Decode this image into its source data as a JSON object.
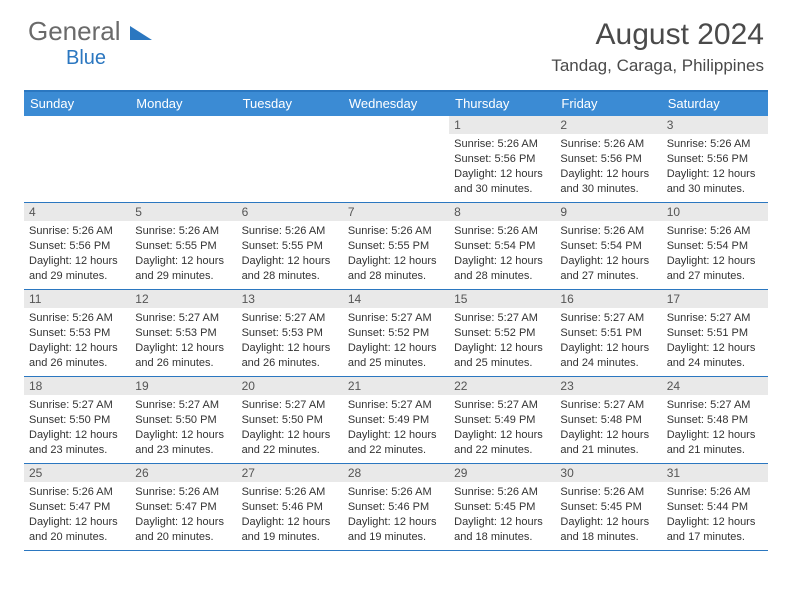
{
  "logo": {
    "text1": "General",
    "text2": "Blue"
  },
  "title": {
    "month": "August 2024",
    "location": "Tandag, Caraga, Philippines"
  },
  "colors": {
    "header_bg": "#3b8bd4",
    "border": "#2b77c0",
    "daynum_bg": "#e9e9e9",
    "text": "#333333",
    "title_text": "#4a4a4a"
  },
  "day_names": [
    "Sunday",
    "Monday",
    "Tuesday",
    "Wednesday",
    "Thursday",
    "Friday",
    "Saturday"
  ],
  "weeks": [
    [
      null,
      null,
      null,
      null,
      {
        "n": "1",
        "sr": "5:26 AM",
        "ss": "5:56 PM",
        "dl": "12 hours and 30 minutes."
      },
      {
        "n": "2",
        "sr": "5:26 AM",
        "ss": "5:56 PM",
        "dl": "12 hours and 30 minutes."
      },
      {
        "n": "3",
        "sr": "5:26 AM",
        "ss": "5:56 PM",
        "dl": "12 hours and 30 minutes."
      }
    ],
    [
      {
        "n": "4",
        "sr": "5:26 AM",
        "ss": "5:56 PM",
        "dl": "12 hours and 29 minutes."
      },
      {
        "n": "5",
        "sr": "5:26 AM",
        "ss": "5:55 PM",
        "dl": "12 hours and 29 minutes."
      },
      {
        "n": "6",
        "sr": "5:26 AM",
        "ss": "5:55 PM",
        "dl": "12 hours and 28 minutes."
      },
      {
        "n": "7",
        "sr": "5:26 AM",
        "ss": "5:55 PM",
        "dl": "12 hours and 28 minutes."
      },
      {
        "n": "8",
        "sr": "5:26 AM",
        "ss": "5:54 PM",
        "dl": "12 hours and 28 minutes."
      },
      {
        "n": "9",
        "sr": "5:26 AM",
        "ss": "5:54 PM",
        "dl": "12 hours and 27 minutes."
      },
      {
        "n": "10",
        "sr": "5:26 AM",
        "ss": "5:54 PM",
        "dl": "12 hours and 27 minutes."
      }
    ],
    [
      {
        "n": "11",
        "sr": "5:26 AM",
        "ss": "5:53 PM",
        "dl": "12 hours and 26 minutes."
      },
      {
        "n": "12",
        "sr": "5:27 AM",
        "ss": "5:53 PM",
        "dl": "12 hours and 26 minutes."
      },
      {
        "n": "13",
        "sr": "5:27 AM",
        "ss": "5:53 PM",
        "dl": "12 hours and 26 minutes."
      },
      {
        "n": "14",
        "sr": "5:27 AM",
        "ss": "5:52 PM",
        "dl": "12 hours and 25 minutes."
      },
      {
        "n": "15",
        "sr": "5:27 AM",
        "ss": "5:52 PM",
        "dl": "12 hours and 25 minutes."
      },
      {
        "n": "16",
        "sr": "5:27 AM",
        "ss": "5:51 PM",
        "dl": "12 hours and 24 minutes."
      },
      {
        "n": "17",
        "sr": "5:27 AM",
        "ss": "5:51 PM",
        "dl": "12 hours and 24 minutes."
      }
    ],
    [
      {
        "n": "18",
        "sr": "5:27 AM",
        "ss": "5:50 PM",
        "dl": "12 hours and 23 minutes."
      },
      {
        "n": "19",
        "sr": "5:27 AM",
        "ss": "5:50 PM",
        "dl": "12 hours and 23 minutes."
      },
      {
        "n": "20",
        "sr": "5:27 AM",
        "ss": "5:50 PM",
        "dl": "12 hours and 22 minutes."
      },
      {
        "n": "21",
        "sr": "5:27 AM",
        "ss": "5:49 PM",
        "dl": "12 hours and 22 minutes."
      },
      {
        "n": "22",
        "sr": "5:27 AM",
        "ss": "5:49 PM",
        "dl": "12 hours and 22 minutes."
      },
      {
        "n": "23",
        "sr": "5:27 AM",
        "ss": "5:48 PM",
        "dl": "12 hours and 21 minutes."
      },
      {
        "n": "24",
        "sr": "5:27 AM",
        "ss": "5:48 PM",
        "dl": "12 hours and 21 minutes."
      }
    ],
    [
      {
        "n": "25",
        "sr": "5:26 AM",
        "ss": "5:47 PM",
        "dl": "12 hours and 20 minutes."
      },
      {
        "n": "26",
        "sr": "5:26 AM",
        "ss": "5:47 PM",
        "dl": "12 hours and 20 minutes."
      },
      {
        "n": "27",
        "sr": "5:26 AM",
        "ss": "5:46 PM",
        "dl": "12 hours and 19 minutes."
      },
      {
        "n": "28",
        "sr": "5:26 AM",
        "ss": "5:46 PM",
        "dl": "12 hours and 19 minutes."
      },
      {
        "n": "29",
        "sr": "5:26 AM",
        "ss": "5:45 PM",
        "dl": "12 hours and 18 minutes."
      },
      {
        "n": "30",
        "sr": "5:26 AM",
        "ss": "5:45 PM",
        "dl": "12 hours and 18 minutes."
      },
      {
        "n": "31",
        "sr": "5:26 AM",
        "ss": "5:44 PM",
        "dl": "12 hours and 17 minutes."
      }
    ]
  ],
  "labels": {
    "sunrise": "Sunrise:",
    "sunset": "Sunset:",
    "daylight": "Daylight:"
  }
}
